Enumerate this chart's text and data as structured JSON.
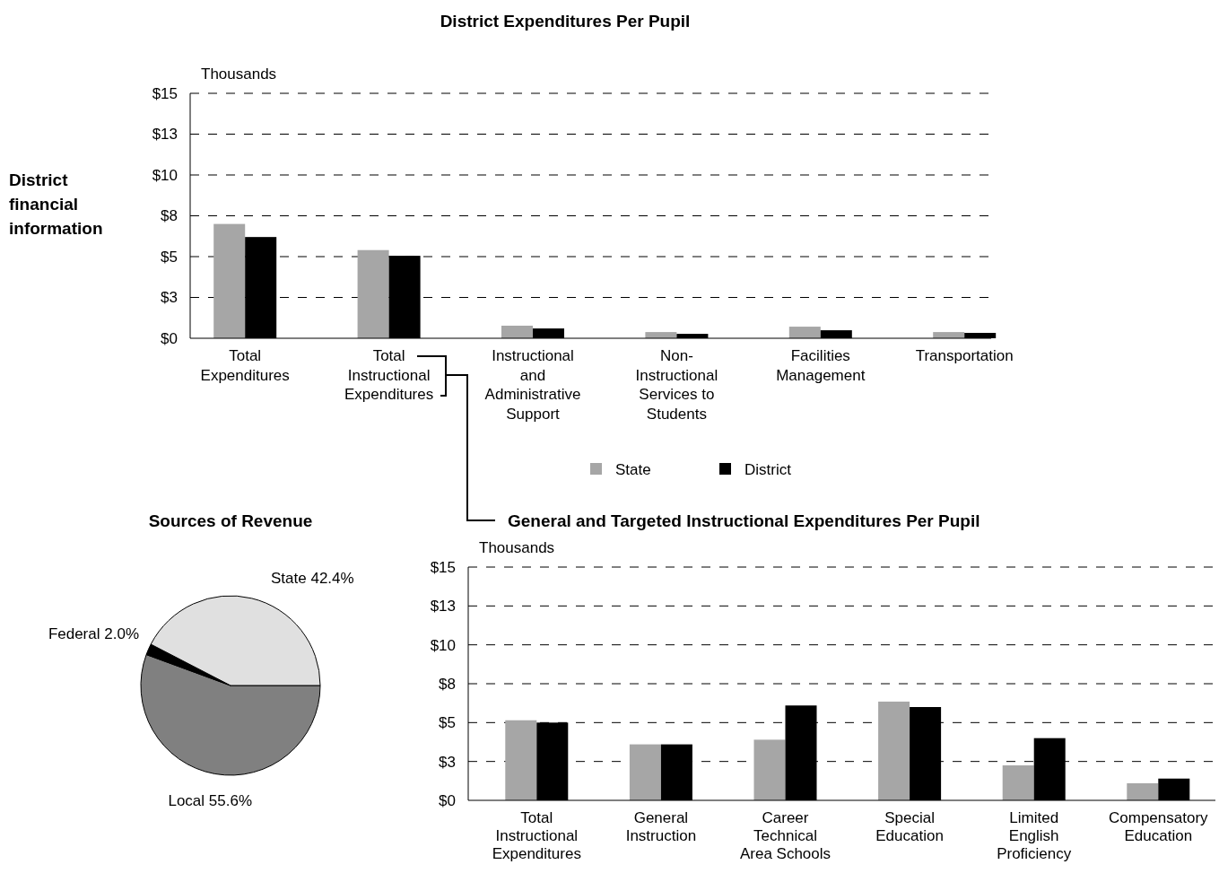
{
  "chart_data": [
    {
      "type": "bar",
      "title": "District Expenditures Per Pupil",
      "ylabel": "Thousands",
      "annotations": [
        "District financial information"
      ],
      "categories": [
        "Total Expenditures",
        "Total Instructional Expenditures",
        "Instructional and Administrative Support",
        "Non-Instructional Services to Students",
        "Facilities Management",
        "Transportation"
      ],
      "series": [
        {
          "color": "#a6a6a6",
          "values": [
            7.0,
            5.4,
            0.77,
            0.38,
            0.71,
            0.38
          ]
        },
        {
          "color": "#000000",
          "values": [
            6.2,
            5.05,
            0.6,
            0.27,
            0.49,
            0.33
          ]
        }
      ],
      "ylim": [
        0,
        15
      ],
      "yticks": [
        {
          "value": 0,
          "label": "$0"
        },
        {
          "value": 2.5,
          "label": "$3"
        },
        {
          "value": 5,
          "label": "$5"
        },
        {
          "value": 7.5,
          "label": "$8"
        },
        {
          "value": 10,
          "label": "$10"
        },
        {
          "value": 12.5,
          "label": "$13"
        },
        {
          "value": 15,
          "label": "$15"
        }
      ],
      "grid": "y"
    },
    {
      "type": "pie",
      "title": "Sources of Revenue",
      "categories": [
        "Local",
        "Federal",
        "State"
      ],
      "values": [
        55.6,
        2.0,
        42.4
      ],
      "value_labels": [
        "55.6%",
        "2.0%",
        "42.4%"
      ],
      "colors": [
        "#808080",
        "#000000",
        "#e0e0e0"
      ]
    },
    {
      "type": "bar",
      "title": "General and Targeted Instructional Expenditures Per Pupil",
      "ylabel": "Thousands",
      "categories": [
        "Total Instructional Expenditures",
        "General Instruction",
        "Career Technical Area Schools",
        "Special Education",
        "Limited English Proficiency",
        "Compensatory Education"
      ],
      "series": [
        {
          "name": "State",
          "color": "#a6a6a6",
          "values": [
            5.15,
            3.6,
            3.9,
            6.35,
            2.25,
            1.1
          ]
        },
        {
          "name": "District",
          "color": "#000000",
          "values": [
            5.0,
            3.6,
            6.1,
            6.0,
            4.0,
            1.4
          ]
        }
      ],
      "ylim": [
        0,
        15
      ],
      "yticks": [
        {
          "value": 0,
          "label": "$0"
        },
        {
          "value": 2.5,
          "label": "$3"
        },
        {
          "value": 5,
          "label": "$5"
        },
        {
          "value": 7.5,
          "label": "$8"
        },
        {
          "value": 10,
          "label": "$10"
        },
        {
          "value": 12.5,
          "label": "$13"
        },
        {
          "value": 15,
          "label": "$15"
        }
      ],
      "grid": "y",
      "legend": "top"
    }
  ]
}
